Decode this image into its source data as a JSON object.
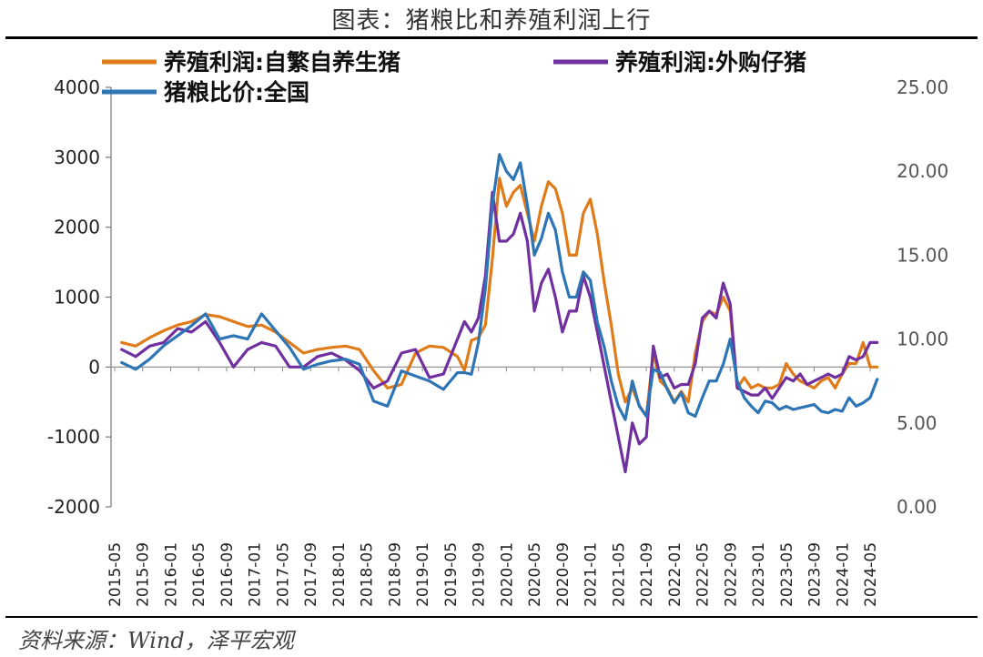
{
  "title": "图表：猪粮比和养殖利润上行",
  "source": "资料来源：Wind，泽平宏观",
  "chart_data": {
    "type": "line",
    "left_axis": {
      "ylim": [
        -2000,
        4000
      ],
      "ticks": [
        "4000",
        "3000",
        "2000",
        "1000",
        "0",
        "-1000",
        "-2000"
      ]
    },
    "right_axis": {
      "ylim": [
        0,
        25
      ],
      "ticks": [
        "25.00",
        "20.00",
        "15.00",
        "10.00",
        "5.00",
        "0.00"
      ]
    },
    "x_ticks": [
      "2015-05",
      "2015-09",
      "2016-01",
      "2016-05",
      "2016-09",
      "2017-01",
      "2017-05",
      "2017-09",
      "2018-01",
      "2018-05",
      "2018-09",
      "2019-01",
      "2019-05",
      "2019-09",
      "2020-01",
      "2020-05",
      "2020-09",
      "2021-01",
      "2021-05",
      "2021-09",
      "2022-01",
      "2022-05",
      "2022-09",
      "2023-01",
      "2023-05",
      "2023-09",
      "2024-01",
      "2024-05"
    ],
    "legend": [
      "养殖利润:自繁自养生猪",
      "养殖利润:外购仔猪",
      "猪粮比价:全国"
    ],
    "series": [
      {
        "name": "养殖利润:自繁自养生猪",
        "axis": "left",
        "color": "#E07B1A",
        "x": [
          "2015-06",
          "2015-08",
          "2015-10",
          "2015-12",
          "2016-02",
          "2016-04",
          "2016-06",
          "2016-08",
          "2016-10",
          "2016-12",
          "2017-02",
          "2017-04",
          "2017-06",
          "2017-08",
          "2017-10",
          "2017-12",
          "2018-02",
          "2018-04",
          "2018-06",
          "2018-08",
          "2018-10",
          "2018-12",
          "2019-02",
          "2019-04",
          "2019-06",
          "2019-07",
          "2019-08",
          "2019-09",
          "2019-10",
          "2019-11",
          "2019-12",
          "2020-01",
          "2020-02",
          "2020-03",
          "2020-04",
          "2020-05",
          "2020-06",
          "2020-07",
          "2020-08",
          "2020-09",
          "2020-10",
          "2020-11",
          "2020-12",
          "2021-01",
          "2021-02",
          "2021-03",
          "2021-04",
          "2021-05",
          "2021-06",
          "2021-07",
          "2021-08",
          "2021-09",
          "2021-10",
          "2021-11",
          "2021-12",
          "2022-01",
          "2022-02",
          "2022-03",
          "2022-04",
          "2022-05",
          "2022-06",
          "2022-07",
          "2022-08",
          "2022-09",
          "2022-10",
          "2022-11",
          "2022-12",
          "2023-01",
          "2023-02",
          "2023-03",
          "2023-04",
          "2023-05",
          "2023-06",
          "2023-07",
          "2023-08",
          "2023-09",
          "2023-10",
          "2023-11",
          "2023-12",
          "2024-01",
          "2024-02",
          "2024-03",
          "2024-04",
          "2024-05",
          "2024-06"
        ],
        "values": [
          350,
          300,
          420,
          520,
          600,
          650,
          750,
          720,
          650,
          580,
          600,
          500,
          350,
          200,
          250,
          280,
          300,
          250,
          -50,
          -300,
          -250,
          200,
          300,
          280,
          150,
          -50,
          380,
          420,
          600,
          1550,
          2700,
          2300,
          2500,
          2600,
          2200,
          1800,
          2300,
          2650,
          2550,
          2200,
          1600,
          1600,
          2200,
          2400,
          1900,
          1200,
          600,
          -100,
          -500,
          -300,
          -550,
          -700,
          200,
          -200,
          -300,
          -500,
          -350,
          -500,
          200,
          650,
          800,
          750,
          1000,
          800,
          -300,
          -150,
          -300,
          -250,
          -300,
          -300,
          -250,
          50,
          -100,
          -200,
          -250,
          -300,
          -200,
          -150,
          -300,
          -100,
          50,
          50,
          350,
          0,
          0
        ]
      },
      {
        "name": "养殖利润:外购仔猪",
        "axis": "left",
        "color": "#7030A0",
        "x": [
          "2015-06",
          "2015-08",
          "2015-10",
          "2015-12",
          "2016-02",
          "2016-04",
          "2016-06",
          "2016-08",
          "2016-10",
          "2016-12",
          "2017-02",
          "2017-04",
          "2017-06",
          "2017-08",
          "2017-10",
          "2017-12",
          "2018-02",
          "2018-04",
          "2018-06",
          "2018-08",
          "2018-10",
          "2018-12",
          "2019-02",
          "2019-04",
          "2019-06",
          "2019-07",
          "2019-08",
          "2019-09",
          "2019-10",
          "2019-11",
          "2019-12",
          "2020-01",
          "2020-02",
          "2020-03",
          "2020-04",
          "2020-05",
          "2020-06",
          "2020-07",
          "2020-08",
          "2020-09",
          "2020-10",
          "2020-11",
          "2020-12",
          "2021-01",
          "2021-02",
          "2021-03",
          "2021-04",
          "2021-05",
          "2021-06",
          "2021-07",
          "2021-08",
          "2021-09",
          "2021-10",
          "2021-11",
          "2021-12",
          "2022-01",
          "2022-02",
          "2022-03",
          "2022-04",
          "2022-05",
          "2022-06",
          "2022-07",
          "2022-08",
          "2022-09",
          "2022-10",
          "2022-11",
          "2022-12",
          "2023-01",
          "2023-02",
          "2023-03",
          "2023-04",
          "2023-05",
          "2023-06",
          "2023-07",
          "2023-08",
          "2023-09",
          "2023-10",
          "2023-11",
          "2023-12",
          "2024-01",
          "2024-02",
          "2024-03",
          "2024-04",
          "2024-05",
          "2024-06"
        ],
        "values": [
          250,
          150,
          300,
          350,
          550,
          500,
          650,
          350,
          0,
          250,
          350,
          300,
          0,
          0,
          150,
          200,
          100,
          -50,
          -300,
          -200,
          200,
          250,
          -150,
          -100,
          400,
          650,
          500,
          700,
          1300,
          2500,
          1800,
          1800,
          1900,
          2200,
          1800,
          800,
          1200,
          1400,
          1000,
          500,
          800,
          800,
          1300,
          1000,
          500,
          0,
          -500,
          -1000,
          -1500,
          -800,
          -1100,
          -1000,
          300,
          -150,
          -100,
          -300,
          -250,
          -250,
          50,
          700,
          800,
          700,
          1200,
          900,
          -300,
          -350,
          -400,
          -400,
          -300,
          -450,
          -300,
          -150,
          -200,
          -100,
          -250,
          -200,
          -150,
          -100,
          -150,
          -100,
          150,
          100,
          150,
          350,
          350
        ]
      },
      {
        "name": "猪粮比价:全国",
        "axis": "right",
        "color": "#2E75B6",
        "x": [
          "2015-06",
          "2015-08",
          "2015-10",
          "2015-12",
          "2016-02",
          "2016-04",
          "2016-06",
          "2016-08",
          "2016-10",
          "2016-12",
          "2017-02",
          "2017-04",
          "2017-06",
          "2017-08",
          "2017-10",
          "2017-12",
          "2018-02",
          "2018-04",
          "2018-06",
          "2018-08",
          "2018-10",
          "2018-12",
          "2019-02",
          "2019-04",
          "2019-06",
          "2019-07",
          "2019-08",
          "2019-09",
          "2019-10",
          "2019-11",
          "2019-12",
          "2020-01",
          "2020-02",
          "2020-03",
          "2020-04",
          "2020-05",
          "2020-06",
          "2020-07",
          "2020-08",
          "2020-09",
          "2020-10",
          "2020-11",
          "2020-12",
          "2021-01",
          "2021-02",
          "2021-03",
          "2021-04",
          "2021-05",
          "2021-06",
          "2021-07",
          "2021-08",
          "2021-09",
          "2021-10",
          "2021-11",
          "2021-12",
          "2022-01",
          "2022-02",
          "2022-03",
          "2022-04",
          "2022-05",
          "2022-06",
          "2022-07",
          "2022-08",
          "2022-09",
          "2022-10",
          "2022-11",
          "2022-12",
          "2023-01",
          "2023-02",
          "2023-03",
          "2023-04",
          "2023-05",
          "2023-06",
          "2023-07",
          "2023-08",
          "2023-09",
          "2023-10",
          "2023-11",
          "2023-12",
          "2024-01",
          "2024-02",
          "2024-03",
          "2024-04",
          "2024-05",
          "2024-06"
        ],
        "values": [
          8.6,
          8.2,
          8.8,
          9.6,
          10.2,
          10.8,
          11.5,
          10.0,
          10.2,
          10.0,
          11.5,
          10.5,
          9.5,
          8.2,
          8.5,
          8.7,
          8.8,
          8.5,
          6.3,
          6.0,
          8.1,
          7.8,
          7.5,
          7.0,
          8.0,
          8.0,
          7.9,
          9.8,
          13.0,
          18.0,
          21.0,
          20.0,
          19.5,
          20.5,
          18.0,
          15.0,
          16.0,
          17.5,
          16.5,
          14.0,
          12.5,
          12.5,
          14.0,
          13.5,
          11.0,
          9.5,
          7.5,
          6.0,
          5.2,
          7.5,
          6.0,
          5.4,
          8.2,
          8.0,
          7.0,
          6.2,
          6.8,
          5.6,
          5.4,
          6.5,
          7.5,
          7.5,
          8.5,
          10.0,
          7.5,
          6.5,
          6.0,
          5.6,
          6.3,
          6.2,
          5.8,
          6.0,
          5.8,
          5.9,
          6.0,
          6.1,
          5.7,
          5.6,
          5.8,
          5.7,
          6.5,
          6.0,
          6.2,
          6.5,
          7.6
        ]
      }
    ]
  }
}
